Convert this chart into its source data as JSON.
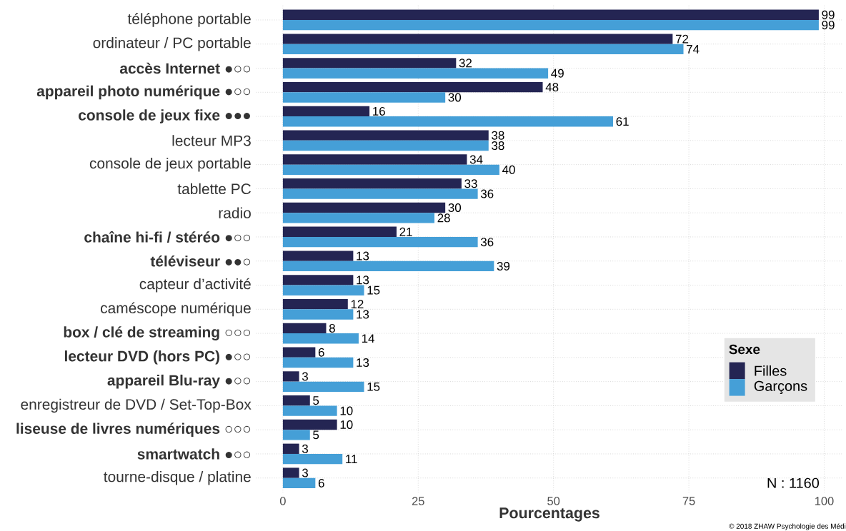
{
  "chart_data": {
    "type": "bar",
    "orientation": "horizontal",
    "categories": [
      "téléphone portable",
      "ordinateur / PC portable",
      "**accès Internet** ●○○",
      "**appareil photo numérique** ●○○",
      "**console de jeux fixe** ●●●",
      "lecteur MP3",
      "console de jeux portable",
      "tablette PC",
      "radio",
      "**chaîne hi-fi / stéréo** ●○○",
      "**téléviseur** ●●○",
      "capteur d’activité",
      "caméscope numérique",
      "**box / clé de streaming** ○○○",
      "**lecteur DVD (hors PC)** ●○○",
      "**appareil Blu-ray** ●○○",
      "enregistreur de DVD / Set-Top-Box",
      "**liseuse de livres numériques** ○○○",
      "**smartwatch** ●○○",
      "tourne-disque / platine"
    ],
    "series": [
      {
        "name": "Filles",
        "color": "#242553",
        "values": [
          99,
          72,
          32,
          48,
          16,
          38,
          34,
          33,
          30,
          21,
          13,
          13,
          12,
          8,
          6,
          3,
          5,
          10,
          3,
          3
        ]
      },
      {
        "name": "Garçons",
        "color": "#459fd7",
        "values": [
          99,
          74,
          49,
          30,
          61,
          38,
          40,
          36,
          28,
          36,
          39,
          15,
          13,
          14,
          13,
          15,
          10,
          5,
          11,
          6
        ]
      }
    ],
    "xlabel": "Pourcentages",
    "legend_title": "Sexe",
    "legend": "bottom right",
    "xlim": [
      -5,
      103.5
    ],
    "xticks": [
      0,
      25,
      50,
      75,
      100
    ],
    "grid": true,
    "data_labels": true,
    "annotations": [
      "N : 1160",
      "© 2018 ZHAW Psychologie des Médi"
    ]
  }
}
